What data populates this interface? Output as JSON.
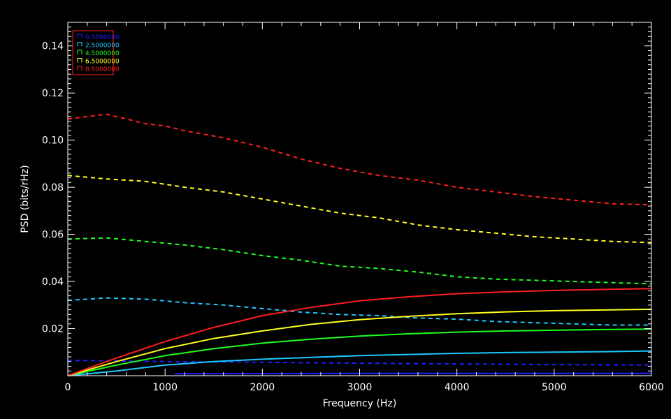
{
  "chart_data": {
    "type": "line",
    "title": "",
    "xlabel": "Frequency (Hz)",
    "ylabel": "PSD (bits/rHz)",
    "xlim": [
      0,
      6000
    ],
    "ylim": [
      0.0,
      0.15
    ],
    "x_ticks": [
      0,
      1000,
      2000,
      3000,
      4000,
      5000,
      6000
    ],
    "x_tick_labels": [
      "0",
      "1000",
      "2000",
      "3000",
      "4000",
      "5000",
      "6000"
    ],
    "y_ticks": [
      0.02,
      0.04,
      0.06,
      0.08,
      0.1,
      0.12,
      0.14
    ],
    "y_tick_labels": [
      "0.02",
      "0.04",
      "0.06",
      "0.08",
      "0.10",
      "0.12",
      "0.14"
    ],
    "grid": false,
    "background": "#000000",
    "legend_position": "top-left",
    "series": [
      {
        "name": "0.5000000",
        "color": "#1e1eff",
        "dashed": {
          "x": [
            0,
            500,
            1000,
            2000,
            3000,
            4000,
            5000,
            6000
          ],
          "y": [
            0.0065,
            0.0063,
            0.006,
            0.0057,
            0.0053,
            0.005,
            0.0047,
            0.0045
          ]
        },
        "solid": {
          "x": [
            1100,
            2000,
            3000,
            4000,
            5000,
            6000
          ],
          "y": [
            0.0008,
            0.0009,
            0.001,
            0.001,
            0.001,
            0.001
          ]
        }
      },
      {
        "name": "2.5000000",
        "color": "#1ec8ff",
        "dashed": {
          "x": [
            0,
            400,
            800,
            1200,
            1600,
            2000,
            2400,
            2800,
            3200,
            3600,
            4000,
            4400,
            4800,
            5200,
            5600,
            6000
          ],
          "y": [
            0.032,
            0.033,
            0.0325,
            0.031,
            0.03,
            0.0285,
            0.027,
            0.026,
            0.0255,
            0.0245,
            0.024,
            0.023,
            0.0225,
            0.022,
            0.0215,
            0.0215
          ]
        },
        "solid": {
          "x": [
            0,
            500,
            1000,
            1500,
            2000,
            2500,
            3000,
            3500,
            4000,
            4500,
            5000,
            5500,
            6000
          ],
          "y": [
            0.0,
            0.002,
            0.0045,
            0.006,
            0.007,
            0.0078,
            0.0085,
            0.009,
            0.0095,
            0.0098,
            0.01,
            0.0102,
            0.0105
          ]
        }
      },
      {
        "name": "4.5000000",
        "color": "#1eff1e",
        "dashed": {
          "x": [
            0,
            400,
            800,
            1200,
            1600,
            2000,
            2400,
            2800,
            3200,
            3600,
            4000,
            4400,
            4800,
            5200,
            5600,
            6000
          ],
          "y": [
            0.058,
            0.0585,
            0.057,
            0.0555,
            0.0535,
            0.051,
            0.049,
            0.0465,
            0.0455,
            0.044,
            0.042,
            0.041,
            0.0405,
            0.04,
            0.0395,
            0.039
          ]
        },
        "solid": {
          "x": [
            0,
            500,
            1000,
            1500,
            2000,
            2500,
            3000,
            3500,
            4000,
            4500,
            5000,
            5500,
            6000
          ],
          "y": [
            0.0,
            0.0045,
            0.0085,
            0.0115,
            0.0138,
            0.0155,
            0.0168,
            0.0178,
            0.0185,
            0.019,
            0.0193,
            0.0196,
            0.0198
          ]
        }
      },
      {
        "name": "6.5000000",
        "color": "#ffff1e",
        "dashed": {
          "x": [
            0,
            400,
            800,
            1200,
            1600,
            2000,
            2400,
            2800,
            3200,
            3600,
            4000,
            4400,
            4800,
            5200,
            5600,
            6000
          ],
          "y": [
            0.085,
            0.0835,
            0.0825,
            0.08,
            0.078,
            0.075,
            0.072,
            0.069,
            0.067,
            0.064,
            0.062,
            0.0605,
            0.059,
            0.058,
            0.057,
            0.0565
          ]
        },
        "solid": {
          "x": [
            0,
            500,
            1000,
            1500,
            2000,
            2500,
            3000,
            3500,
            4000,
            4500,
            5000,
            5500,
            6000
          ],
          "y": [
            0.0,
            0.006,
            0.0115,
            0.0158,
            0.019,
            0.0218,
            0.0238,
            0.0252,
            0.0263,
            0.0271,
            0.0276,
            0.0279,
            0.0282
          ]
        }
      },
      {
        "name": "8.5000000",
        "color": "#ff1e1e",
        "dashed": {
          "x": [
            0,
            200,
            400,
            600,
            800,
            1000,
            1200,
            1600,
            2000,
            2400,
            2800,
            3200,
            3600,
            4000,
            4400,
            4800,
            5200,
            5600,
            6000
          ],
          "y": [
            0.109,
            0.11,
            0.111,
            0.109,
            0.107,
            0.106,
            0.104,
            0.101,
            0.097,
            0.092,
            0.088,
            0.085,
            0.083,
            0.08,
            0.078,
            0.076,
            0.0745,
            0.073,
            0.0725
          ]
        },
        "solid": {
          "x": [
            0,
            500,
            1000,
            1500,
            2000,
            2500,
            3000,
            3500,
            4000,
            4500,
            5000,
            5500,
            6000
          ],
          "y": [
            0.0,
            0.0075,
            0.0145,
            0.0205,
            0.0255,
            0.029,
            0.0318,
            0.0335,
            0.0348,
            0.0356,
            0.0362,
            0.0366,
            0.037
          ]
        }
      }
    ]
  }
}
